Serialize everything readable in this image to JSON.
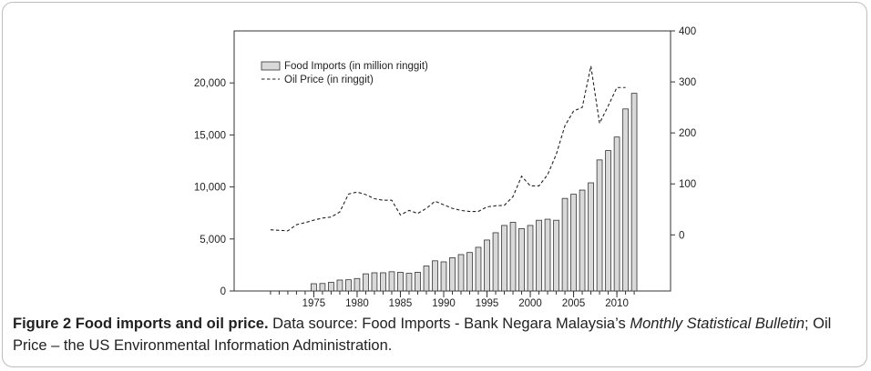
{
  "chart_data": {
    "type": "bar",
    "title": "",
    "xlabel": "",
    "ylabel": "",
    "x": [
      1970,
      1971,
      1972,
      1973,
      1974,
      1975,
      1976,
      1977,
      1978,
      1979,
      1980,
      1981,
      1982,
      1983,
      1984,
      1985,
      1986,
      1987,
      1988,
      1989,
      1990,
      1991,
      1992,
      1993,
      1994,
      1995,
      1996,
      1997,
      1998,
      1999,
      2000,
      2001,
      2002,
      2003,
      2004,
      2005,
      2006,
      2007,
      2008,
      2009,
      2010,
      2011,
      2012
    ],
    "x_ticks": [
      1975,
      1980,
      1985,
      1990,
      1995,
      2000,
      2005,
      2010
    ],
    "y_left": {
      "ticks": [
        0,
        5000,
        10000,
        15000,
        20000
      ],
      "tick_labels": [
        "0",
        "5,000",
        "10,000",
        "15,000",
        "20,000"
      ],
      "ylim": [
        0,
        25000
      ]
    },
    "y_right": {
      "ticks": [
        0,
        100,
        200,
        300,
        400
      ],
      "tick_labels": [
        "0",
        "100",
        "200",
        "300",
        "400"
      ],
      "ylim": [
        -110,
        400
      ]
    },
    "series": [
      {
        "name": "Food Imports (in million ringgit)",
        "kind": "bar",
        "axis": "left",
        "color": "#d9d9d9",
        "values": [
          null,
          null,
          null,
          null,
          null,
          700,
          720,
          830,
          1050,
          1080,
          1200,
          1650,
          1750,
          1750,
          1850,
          1800,
          1700,
          1800,
          2400,
          2900,
          2800,
          3200,
          3500,
          3700,
          4200,
          4900,
          5600,
          6300,
          6600,
          6000,
          6300,
          6800,
          6900,
          6800,
          8900,
          9300,
          9700,
          10400,
          12600,
          13500,
          14800,
          17500,
          19000
        ]
      },
      {
        "name": "Oil Price (in ringgit)",
        "kind": "line",
        "axis": "right",
        "style": "dashed",
        "values": [
          10,
          9,
          8,
          20,
          24,
          29,
          33,
          35,
          45,
          80,
          84,
          79,
          71,
          68,
          68,
          39,
          48,
          42,
          52,
          66,
          59,
          52,
          48,
          46,
          46,
          55,
          57,
          58,
          75,
          115,
          96,
          96,
          118,
          158,
          214,
          243,
          250,
          331,
          219,
          253,
          289,
          289,
          null
        ]
      }
    ],
    "legend": {
      "placement": "top-left"
    }
  },
  "caption": {
    "label": "Figure 2 Food imports and oil price.",
    "text_1": " Data source: Food Imports - Bank Negara Malaysia’s ",
    "italic_1": "Monthly Statistical Bulletin",
    "text_2": "; Oil Price – the US Environmental Information Administration."
  }
}
